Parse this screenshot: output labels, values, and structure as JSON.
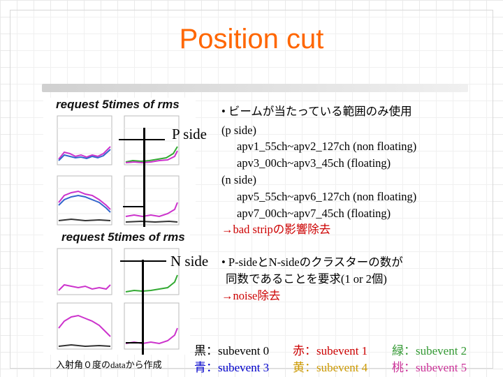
{
  "slide": {
    "title": "Position cut"
  },
  "upper_image": {
    "caption": "request 5times of rms"
  },
  "lower_image": {
    "caption": "request 5times of rms",
    "note": "入射角０度のdataから作成"
  },
  "p_side": {
    "label": "P  side",
    "bullet": "• ビームが当たっている範囲のみ使用",
    "lines": [
      "(p side)",
      "apv1_55ch~apv2_127ch (non floating)",
      "apv3_00ch~apv3_45ch  (floating)",
      "(n side)",
      "apv5_55ch~apv6_127ch  (non floating)",
      "apv7_00ch~apv7_45ch   (floating)"
    ],
    "result": "→bad stripの影響除去"
  },
  "n_side": {
    "label": "N side",
    "bullet": "• P-sideとN-sideのクラスターの数が",
    "line2": "同数であることを要求(1 or 2個)",
    "result": "→noise除去"
  },
  "legend": {
    "row1": [
      {
        "text": "黒：subevent 0",
        "color": "#000000"
      },
      {
        "text": "赤：subevent 1",
        "color": "#cc0000"
      },
      {
        "text": "緑：subevent 2",
        "color": "#339933"
      }
    ],
    "row2": [
      {
        "text": "青：subevent 3",
        "color": "#0000cc"
      },
      {
        "text": "黄：subevent 4",
        "color": "#cc9900"
      },
      {
        "text": "桃：subevent 5",
        "color": "#cc3399"
      }
    ]
  }
}
